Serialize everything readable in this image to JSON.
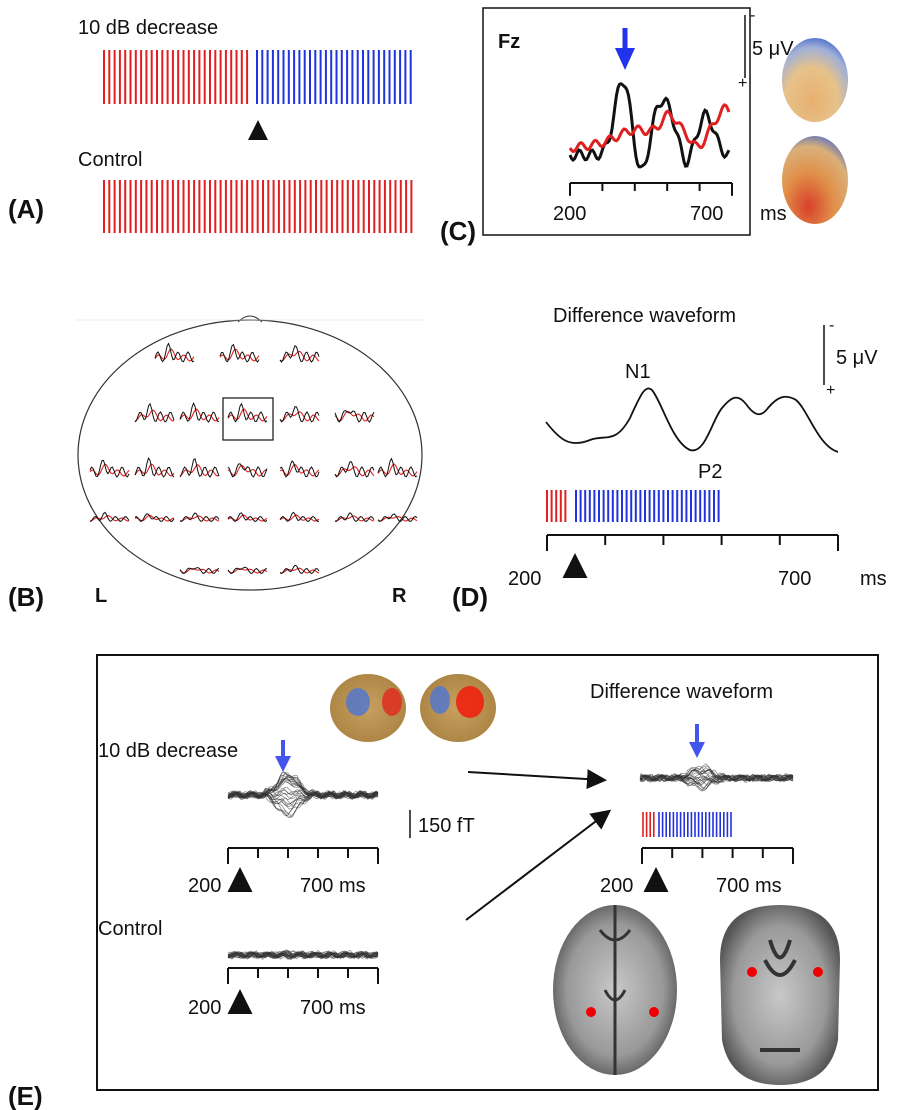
{
  "panel_a": {
    "label": "(A)",
    "conditions": [
      "10 dB decrease",
      "Control"
    ]
  },
  "panel_b": {
    "label": "(B)",
    "left": "L",
    "right": "R"
  },
  "panel_c": {
    "label": "(C)",
    "channel": "Fz",
    "scale": "5 μV",
    "polarity_neg": "-",
    "polarity_pos": "+",
    "axis_start": 200,
    "axis_end": 700,
    "unit": "ms"
  },
  "panel_d": {
    "label": "(D)",
    "title": "Difference waveform",
    "peaks": [
      "N1",
      "P2"
    ],
    "scale": "5 μV",
    "polarity_neg": "-",
    "polarity_pos": "+",
    "axis_start": 200,
    "axis_end": 700,
    "unit": "ms"
  },
  "panel_e": {
    "label": "(E)",
    "conditions": [
      "10 dB decrease",
      "Control"
    ],
    "difference_title": "Difference waveform",
    "scale": "150 fT",
    "axis_start": 200,
    "axis_end": 700,
    "unit": "ms"
  }
}
